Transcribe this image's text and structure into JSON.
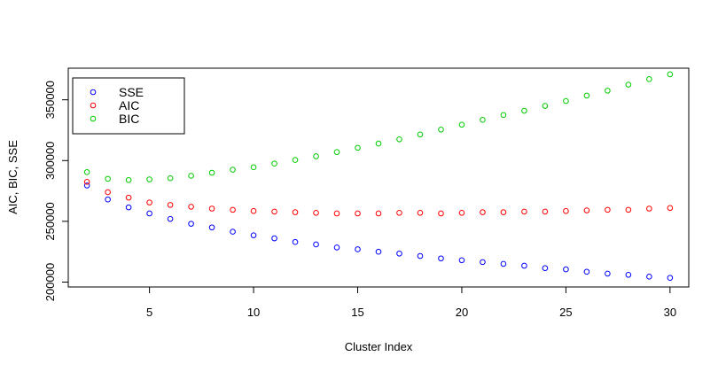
{
  "chart_data": {
    "type": "scatter",
    "title": "",
    "xlabel": "Cluster Index",
    "ylabel": "AIC, BIC, SSE",
    "xlim": [
      1.1,
      30.9
    ],
    "ylim": [
      196000,
      376000
    ],
    "x_ticks": [
      5,
      10,
      15,
      20,
      25,
      30
    ],
    "y_ticks": [
      200000,
      250000,
      300000,
      350000
    ],
    "grid": false,
    "legend_position": "top-left",
    "x": [
      2,
      3,
      4,
      5,
      6,
      7,
      8,
      9,
      10,
      11,
      12,
      13,
      14,
      15,
      16,
      17,
      18,
      19,
      20,
      21,
      22,
      23,
      24,
      25,
      26,
      27,
      28,
      29,
      30
    ],
    "series": [
      {
        "name": "SSE",
        "color": "#0000ff",
        "values": [
          279500,
          268000,
          261500,
          256500,
          252000,
          248000,
          245000,
          241500,
          238500,
          236000,
          233000,
          231000,
          228500,
          227000,
          225000,
          223500,
          221500,
          219500,
          218000,
          216500,
          215000,
          213500,
          211500,
          210500,
          208500,
          207000,
          206000,
          204500,
          203500
        ]
      },
      {
        "name": "AIC",
        "color": "#ff0000",
        "values": [
          282500,
          274000,
          269500,
          265500,
          263500,
          262000,
          260500,
          259500,
          258500,
          258000,
          257500,
          257000,
          256500,
          256500,
          256500,
          257000,
          257000,
          256500,
          257000,
          257500,
          257500,
          258000,
          258000,
          258500,
          259000,
          259500,
          259500,
          260500,
          261000
        ]
      },
      {
        "name": "BIC",
        "color": "#00cc00",
        "values": [
          290500,
          285000,
          284000,
          284500,
          285500,
          287500,
          290000,
          292500,
          294500,
          297500,
          300500,
          303500,
          307000,
          310500,
          314000,
          317500,
          321500,
          325500,
          329500,
          333500,
          337500,
          341000,
          345000,
          349000,
          353500,
          357500,
          362500,
          367000,
          371000
        ]
      }
    ]
  }
}
